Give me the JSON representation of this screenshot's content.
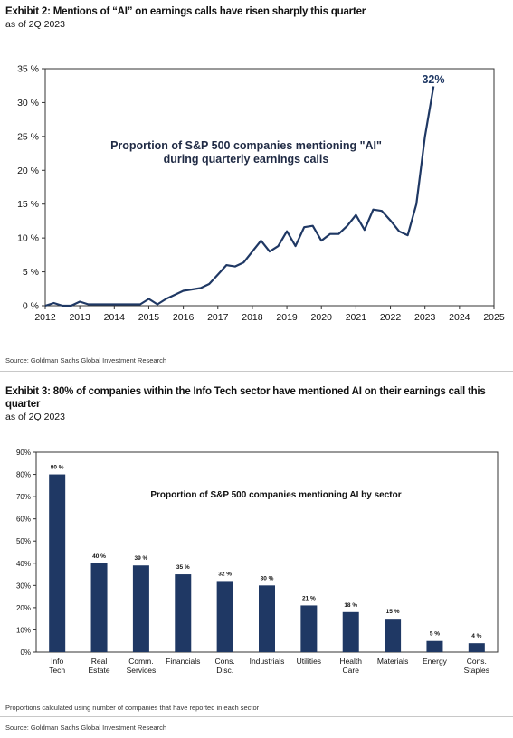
{
  "exhibit2": {
    "title": "Exhibit 2: Mentions of “AI” on earnings calls have risen sharply this quarter",
    "subtitle": "as of 2Q 2023",
    "source": "Source: Goldman Sachs Global Investment Research",
    "chart_data": {
      "type": "line",
      "title": "Proportion of S&P 500 companies mentioning \"AI\"",
      "title_line2": "during quarterly earnings calls",
      "xlabel": "",
      "ylabel": "",
      "xlim": [
        2012,
        2025
      ],
      "ylim": [
        0,
        35
      ],
      "x_ticks": [
        2012,
        2013,
        2014,
        2015,
        2016,
        2017,
        2018,
        2019,
        2020,
        2021,
        2022,
        2023,
        2024,
        2025
      ],
      "y_ticks": [
        "0 %",
        "5 %",
        "10 %",
        "15 %",
        "20 %",
        "25 %",
        "30 %",
        "35 %"
      ],
      "y_tick_values": [
        0,
        5,
        10,
        15,
        20,
        25,
        30,
        35
      ],
      "grid": false,
      "annotation": "32%",
      "series_color": "#1f3864",
      "x": [
        2012.0,
        2012.25,
        2012.5,
        2012.75,
        2013.0,
        2013.25,
        2013.5,
        2013.75,
        2014.0,
        2014.25,
        2014.5,
        2014.75,
        2015.0,
        2015.25,
        2015.5,
        2015.75,
        2016.0,
        2016.25,
        2016.5,
        2016.75,
        2017.0,
        2017.25,
        2017.5,
        2017.75,
        2018.0,
        2018.25,
        2018.5,
        2018.75,
        2019.0,
        2019.25,
        2019.5,
        2019.75,
        2020.0,
        2020.25,
        2020.5,
        2020.75,
        2021.0,
        2021.25,
        2021.5,
        2021.75,
        2022.0,
        2022.25,
        2022.5,
        2022.75,
        2023.0,
        2023.25
      ],
      "values": [
        0,
        0.4,
        0,
        0,
        0.6,
        0.2,
        0.2,
        0.2,
        0.2,
        0.2,
        0.2,
        0.2,
        1.0,
        0.2,
        1.0,
        1.6,
        2.2,
        2.4,
        2.6,
        3.2,
        4.6,
        6.0,
        5.8,
        6.4,
        8.0,
        9.6,
        8.0,
        8.8,
        11.0,
        8.8,
        11.6,
        11.8,
        9.6,
        10.6,
        10.6,
        11.8,
        13.4,
        11.2,
        14.2,
        14.0,
        12.6,
        11.0,
        10.4,
        15.0,
        25.0,
        32.4
      ]
    }
  },
  "exhibit3": {
    "title_line1": "Exhibit 3: 80% of companies within the Info Tech sector have mentioned AI on their earnings call this",
    "title_line2": "quarter",
    "subtitle": "as of 2Q 2023",
    "note": "Proportions calculated using number of companies that have reported in each sector",
    "source": "Source: Goldman Sachs Global Investment Research",
    "chart_data": {
      "type": "bar",
      "title": "Proportion of S&P 500 companies mentioning AI by sector",
      "xlabel": "",
      "ylabel": "",
      "ylim": [
        0,
        90
      ],
      "y_ticks": [
        "0%",
        "10%",
        "20%",
        "30%",
        "40%",
        "50%",
        "60%",
        "70%",
        "80%",
        "90%"
      ],
      "y_tick_values": [
        0,
        10,
        20,
        30,
        40,
        50,
        60,
        70,
        80,
        90
      ],
      "grid": false,
      "bar_color": "#1f3864",
      "categories": [
        [
          "Info",
          "Tech"
        ],
        [
          "Real",
          "Estate"
        ],
        [
          "Comm.",
          "Services"
        ],
        [
          "Financials"
        ],
        [
          "Cons.",
          "Disc."
        ],
        [
          "Industrials"
        ],
        [
          "Utilities"
        ],
        [
          "Health",
          "Care"
        ],
        [
          "Materials"
        ],
        [
          "Energy"
        ],
        [
          "Cons.",
          "Staples"
        ]
      ],
      "values": [
        80,
        40,
        39,
        35,
        32,
        30,
        21,
        18,
        15,
        5,
        4
      ],
      "data_labels": [
        "80 %",
        "40 %",
        "39 %",
        "35 %",
        "32 %",
        "30 %",
        "21 %",
        "18 %",
        "15 %",
        "5 %",
        "4 %"
      ]
    }
  }
}
